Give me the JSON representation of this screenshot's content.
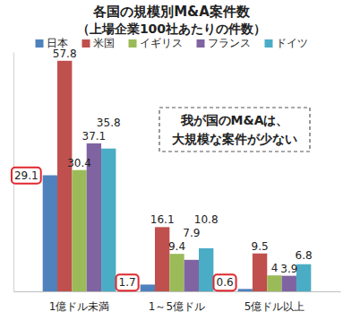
{
  "chart_data": {
    "type": "bar",
    "title": "各国の規模別M&A案件数",
    "subtitle": "（上場企業100社あたりの件数）",
    "categories": [
      "1億ドル未満",
      "1～5億ドル",
      "5億ドル以上"
    ],
    "series": [
      {
        "name": "日本",
        "color": "#4f81bd",
        "values": [
          29.1,
          1.7,
          0.6
        ]
      },
      {
        "name": "米国",
        "color": "#c0504d",
        "values": [
          57.8,
          16.1,
          9.5
        ]
      },
      {
        "name": "イギリス",
        "color": "#9bbb59",
        "values": [
          30.4,
          9.4,
          4
        ]
      },
      {
        "name": "フランス",
        "color": "#8064a2",
        "values": [
          37.1,
          7.9,
          3.9
        ]
      },
      {
        "name": "ドイツ",
        "color": "#4bacc6",
        "values": [
          35.8,
          10.8,
          6.8
        ]
      }
    ],
    "ylim": [
      0,
      60
    ],
    "legend": "top",
    "data_labels": true,
    "tick_labels": "x",
    "annotations": [
      "我が国のM&Aは、",
      "大規模な案件が少ない"
    ]
  }
}
